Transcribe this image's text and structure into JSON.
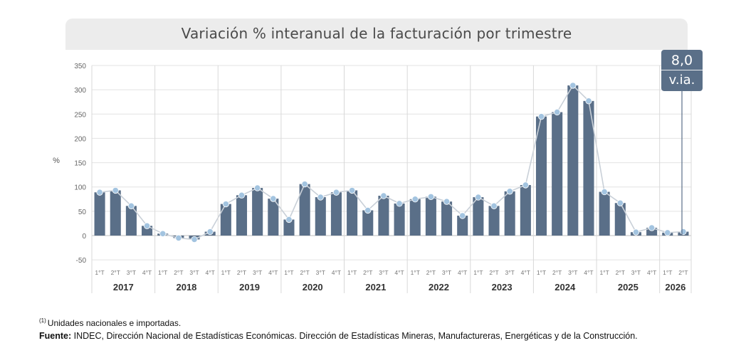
{
  "chart_data": {
    "type": "bar",
    "title": "Variación % interanual de la facturación por trimestre",
    "ylabel": "%",
    "ylim": [
      -50,
      350
    ],
    "yticks": [
      -50,
      0,
      50,
      100,
      150,
      200,
      250,
      300,
      350
    ],
    "grid": true,
    "years": [
      {
        "label": "2017",
        "quarters": [
          "1°T",
          "2°T",
          "3°T",
          "4°T"
        ]
      },
      {
        "label": "2018",
        "quarters": [
          "1°T",
          "2°T",
          "3°T",
          "4°T"
        ]
      },
      {
        "label": "2019",
        "quarters": [
          "1°T",
          "2°T",
          "3°T",
          "4°T"
        ]
      },
      {
        "label": "2020",
        "quarters": [
          "1°T",
          "2°T",
          "3°T",
          "4°T"
        ]
      },
      {
        "label": "2021",
        "quarters": [
          "1°T",
          "2°T",
          "3°T",
          "4°T"
        ]
      },
      {
        "label": "2022",
        "quarters": [
          "1°T",
          "2°T",
          "3°T",
          "4°T"
        ]
      },
      {
        "label": "2023",
        "quarters": [
          "1°T",
          "2°T",
          "3°T",
          "4°T"
        ]
      },
      {
        "label": "2024",
        "quarters": [
          "1°T",
          "2°T",
          "3°T",
          "4°T"
        ]
      },
      {
        "label": "2025",
        "quarters": [
          "1°T",
          "2°T",
          "3°T",
          "4°T"
        ]
      },
      {
        "label": "2026",
        "quarters": [
          "1°T",
          "2°T"
        ]
      }
    ],
    "values": [
      89,
      93,
      61,
      20,
      4,
      -5,
      -8,
      8,
      65,
      83,
      98,
      76,
      33,
      106,
      79,
      89,
      93,
      52,
      82,
      66,
      75,
      80,
      70,
      41,
      79,
      61,
      91,
      104,
      245,
      254,
      309,
      277,
      90,
      67,
      7,
      16,
      6,
      8
    ],
    "series_colors": {
      "bars": "#5a6f88",
      "line": "#c9d0d8",
      "points": "#a3c4e0"
    },
    "highlight": {
      "value": "8,0",
      "label": "v.ia."
    }
  },
  "footnote": {
    "marker": "(1)",
    "text": "Unidades nacionales e importadas."
  },
  "source": {
    "label": "Fuente:",
    "text": " INDEC, Dirección Nacional de Estadísticas Económicas. Dirección de Estadísticas Mineras, Manufactureras, Energéticas y de la Construcción."
  }
}
